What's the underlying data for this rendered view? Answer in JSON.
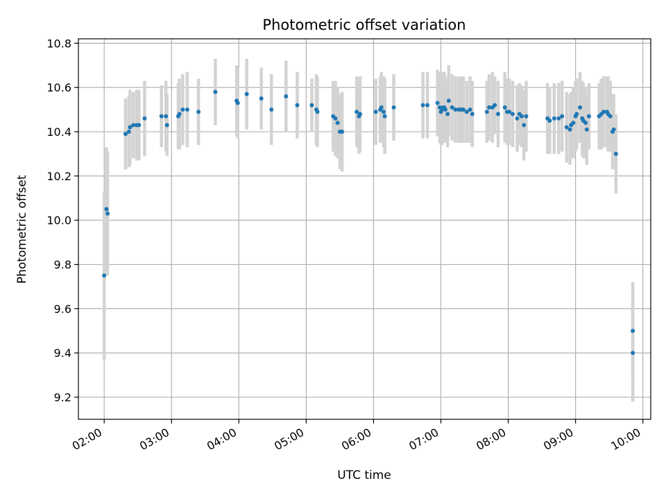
{
  "chart_data": {
    "type": "scatter",
    "title": "Photometric offset variation",
    "xlabel": "UTC time",
    "ylabel": "Photometric offset",
    "xlim": [
      "01:37",
      "10:07"
    ],
    "ylim": [
      9.1,
      10.82
    ],
    "grid": true,
    "x_ticks": [
      "02:00",
      "03:00",
      "04:00",
      "05:00",
      "06:00",
      "07:00",
      "08:00",
      "09:00",
      "10:00"
    ],
    "y_ticks": [
      "9.2",
      "9.4",
      "9.6",
      "9.8",
      "10.0",
      "10.2",
      "10.4",
      "10.6",
      "10.8"
    ],
    "colors": {
      "points": "#1f77b4",
      "errorbars": "#d3d3d3",
      "grid": "#b0b0b0"
    },
    "series": [
      {
        "x": [
          "02:00",
          "02:02",
          "02:03",
          "02:19",
          "02:22",
          "02:23",
          "02:26",
          "02:29",
          "02:31",
          "02:36",
          "02:51",
          "02:55",
          "02:56",
          "03:06",
          "03:07",
          "03:10",
          "03:14",
          "03:24",
          "03:39",
          "03:58",
          "03:59",
          "04:07",
          "04:20",
          "04:29",
          "04:42",
          "04:52",
          "05:05",
          "05:09",
          "05:10",
          "05:24",
          "05:26",
          "05:28",
          "05:30",
          "05:32",
          "05:45",
          "05:47",
          "05:48",
          "06:02",
          "06:06",
          "06:07",
          "06:09",
          "06:10",
          "06:18",
          "06:44",
          "06:48",
          "06:57",
          "06:59",
          "07:00",
          "07:01",
          "07:02",
          "07:03",
          "07:04",
          "07:06",
          "07:07",
          "07:10",
          "07:13",
          "07:16",
          "07:18",
          "07:20",
          "07:23",
          "07:26",
          "07:28",
          "07:41",
          "07:43",
          "07:46",
          "07:48",
          "07:51",
          "07:57",
          "07:59",
          "08:01",
          "08:04",
          "08:08",
          "08:10",
          "08:12",
          "08:14",
          "08:16",
          "08:35",
          "08:37",
          "08:41",
          "08:45",
          "08:48",
          "08:52",
          "08:55",
          "08:56",
          "08:58",
          "09:00",
          "09:01",
          "09:04",
          "09:06",
          "09:07",
          "09:09",
          "09:10",
          "09:12",
          "09:21",
          "09:23",
          "09:25",
          "09:28",
          "09:29",
          "09:31",
          "09:33",
          "09:34",
          "09:36",
          "09:51",
          "09:51"
        ],
        "y": [
          9.75,
          10.05,
          10.03,
          10.39,
          10.4,
          10.42,
          10.43,
          10.43,
          10.43,
          10.46,
          10.47,
          10.47,
          10.43,
          10.47,
          10.48,
          10.5,
          10.5,
          10.49,
          10.58,
          10.54,
          10.53,
          10.57,
          10.55,
          10.5,
          10.56,
          10.52,
          10.52,
          10.5,
          10.49,
          10.47,
          10.46,
          10.44,
          10.4,
          10.4,
          10.49,
          10.47,
          10.48,
          10.49,
          10.5,
          10.51,
          10.49,
          10.47,
          10.51,
          10.52,
          10.52,
          10.53,
          10.51,
          10.49,
          10.5,
          10.51,
          10.51,
          10.5,
          10.48,
          10.54,
          10.51,
          10.5,
          10.5,
          10.5,
          10.5,
          10.49,
          10.5,
          10.48,
          10.49,
          10.51,
          10.51,
          10.52,
          10.48,
          10.51,
          10.49,
          10.49,
          10.48,
          10.46,
          10.48,
          10.47,
          10.43,
          10.47,
          10.46,
          10.45,
          10.46,
          10.46,
          10.47,
          10.42,
          10.41,
          10.43,
          10.44,
          10.47,
          10.48,
          10.51,
          10.46,
          10.45,
          10.44,
          10.41,
          10.47,
          10.47,
          10.48,
          10.49,
          10.49,
          10.48,
          10.47,
          10.4,
          10.41,
          10.3,
          9.5,
          9.4
        ],
        "yerr": [
          0.38,
          0.28,
          0.28,
          0.16,
          0.16,
          0.17,
          0.15,
          0.16,
          0.16,
          0.17,
          0.14,
          0.16,
          0.14,
          0.15,
          0.16,
          0.16,
          0.17,
          0.15,
          0.15,
          0.16,
          0.16,
          0.16,
          0.14,
          0.16,
          0.16,
          0.15,
          0.12,
          0.16,
          0.16,
          0.16,
          0.17,
          0.16,
          0.17,
          0.18,
          0.16,
          0.17,
          0.17,
          0.15,
          0.15,
          0.16,
          0.16,
          0.17,
          0.15,
          0.15,
          0.15,
          0.15,
          0.16,
          0.15,
          0.16,
          0.16,
          0.16,
          0.15,
          0.15,
          0.16,
          0.15,
          0.15,
          0.15,
          0.15,
          0.15,
          0.14,
          0.15,
          0.15,
          0.14,
          0.15,
          0.16,
          0.13,
          0.15,
          0.16,
          0.15,
          0.15,
          0.15,
          0.15,
          0.14,
          0.14,
          0.16,
          0.16,
          0.16,
          0.15,
          0.16,
          0.16,
          0.16,
          0.16,
          0.16,
          0.15,
          0.16,
          0.16,
          0.16,
          0.16,
          0.17,
          0.17,
          0.16,
          0.16,
          0.15,
          0.15,
          0.16,
          0.16,
          0.16,
          0.17,
          0.16,
          0.17,
          0.16,
          0.18,
          0.22,
          0.22
        ]
      }
    ]
  }
}
